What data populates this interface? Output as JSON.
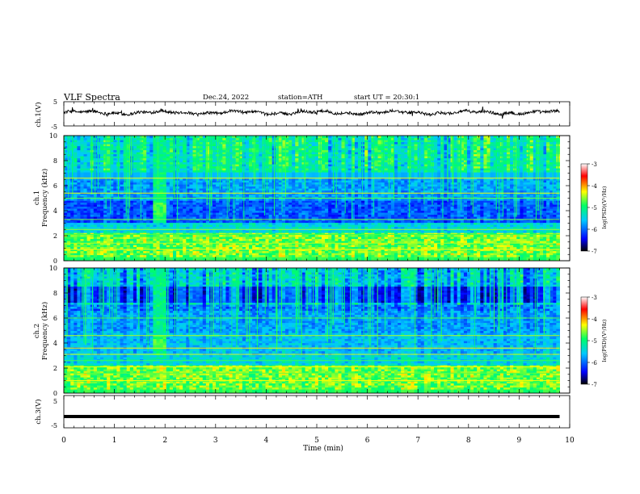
{
  "chart_data": {
    "type": "heatmap",
    "header": {
      "title": "VLF Spectra",
      "date": "Dec.24, 2022",
      "station": "station=ATH",
      "start": "start UT = 20:30:1"
    },
    "x_axis": {
      "label": "Time (min)",
      "range": [
        0,
        10
      ],
      "ticks": [
        "0",
        "1",
        "2",
        "3",
        "4",
        "5",
        "6",
        "7",
        "8",
        "9",
        "10"
      ]
    },
    "panels": [
      {
        "id": "ch1-voltage",
        "type": "line",
        "ylabel": "ch.1(V)",
        "yticks": [
          "5",
          "-5"
        ],
        "ylim": [
          -5,
          5
        ],
        "mean_value": 0.5,
        "note": "noisy signal"
      },
      {
        "id": "ch1-spectrogram",
        "type": "heatmap",
        "ylabel": "ch.1\nFrequency (kHz)",
        "ylabel_lines": [
          "ch.1",
          "Frequency (kHz)"
        ],
        "yticks": [
          "0",
          "2",
          "4",
          "6",
          "8",
          "10"
        ],
        "ylim": [
          0,
          10
        ],
        "data_end_min": 9.8,
        "burst_min": [
          1.75,
          2.0
        ]
      },
      {
        "id": "ch2-spectrogram",
        "type": "heatmap",
        "ylabel_lines": [
          "ch.2",
          "Frequency (kHz)"
        ],
        "yticks": [
          "0",
          "2",
          "4",
          "6",
          "8",
          "10"
        ],
        "ylim": [
          0,
          10
        ],
        "data_end_min": 9.8,
        "burst_min": [
          1.75,
          2.0
        ]
      },
      {
        "id": "ch3-voltage",
        "type": "line",
        "ylabel": "ch.3(V)",
        "yticks": [
          "5",
          "-5"
        ],
        "ylim": [
          -5,
          5
        ],
        "mean_value": -1.5
      }
    ],
    "colorbar": {
      "label": "log(PSD)(V²/Hz)",
      "ticks": [
        "-3",
        "-4",
        "-5",
        "-6",
        "-7"
      ],
      "range": [
        -7,
        -3
      ],
      "colors": [
        "#000000",
        "#0000ff",
        "#00c8ff",
        "#00ff66",
        "#ffff00",
        "#ff0000",
        "#ffffff"
      ]
    }
  }
}
